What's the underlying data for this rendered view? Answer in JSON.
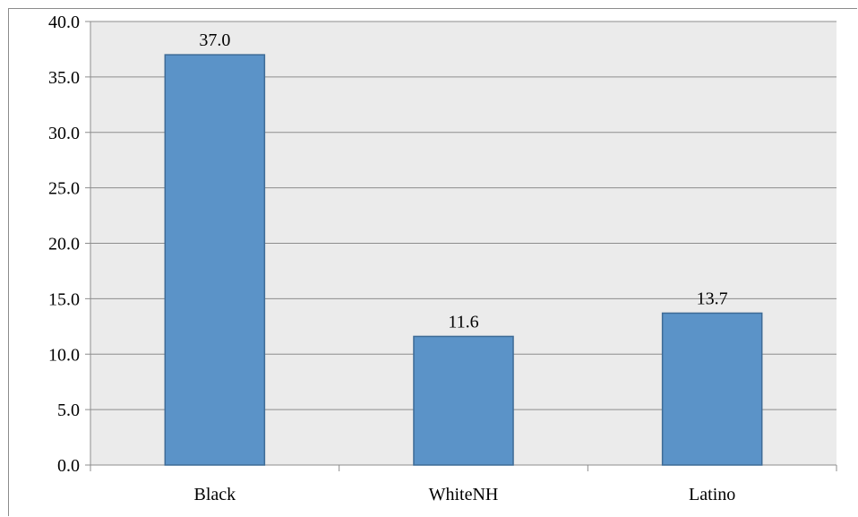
{
  "chart_data": {
    "type": "bar",
    "title": "",
    "xlabel": "",
    "ylabel": "",
    "categories": [
      "Black",
      "WhiteNH",
      "Latino"
    ],
    "values": [
      37.0,
      11.6,
      13.7
    ],
    "data_labels": [
      "37.0",
      "11.6",
      "13.7"
    ],
    "ylim": [
      0,
      40
    ],
    "yticks": [
      0,
      5,
      10,
      15,
      20,
      25,
      30,
      35,
      40
    ],
    "ytick_labels": [
      "0.0",
      "5.0",
      "10.0",
      "15.0",
      "20.0",
      "25.0",
      "30.0",
      "35.0",
      "40.0"
    ],
    "grid": true,
    "legend": "none",
    "colors": {
      "bar_fill": "#5b93c8",
      "bar_stroke": "#3e6b96",
      "plot_background": "#ebebeb",
      "gridline": "#8c8c8c"
    }
  }
}
